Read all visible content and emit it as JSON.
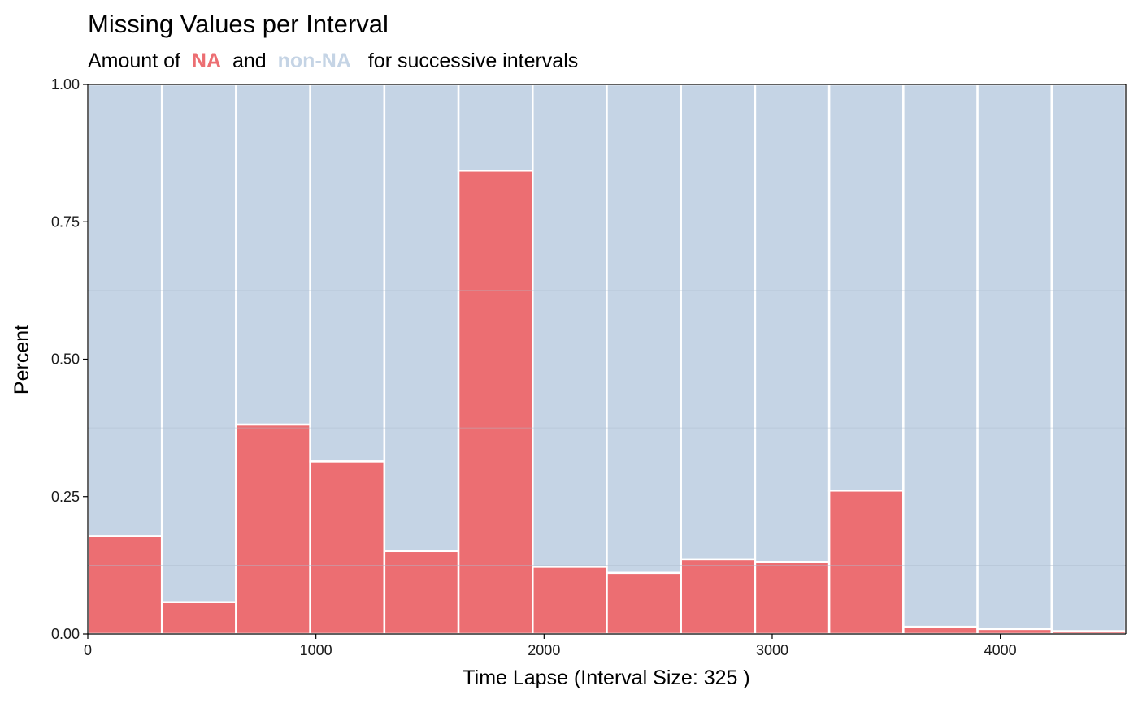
{
  "chart_data": {
    "type": "bar",
    "stacked": true,
    "title": "Missing Values per Interval",
    "subtitle": {
      "prefix": "Amount of",
      "na_label": "NA",
      "middle": "and",
      "nonna_label": "non-NA",
      "suffix": "for successive intervals"
    },
    "xlabel": "Time Lapse (Interval Size: 325 )",
    "ylabel": "Percent",
    "interval_size": 325,
    "xlim": [
      0,
      4550
    ],
    "ylim": [
      0,
      1
    ],
    "x_ticks": [
      "0",
      "1000",
      "2000",
      "3000",
      "4000"
    ],
    "x_tick_values": [
      0,
      1000,
      2000,
      3000,
      4000
    ],
    "y_ticks": [
      "0.00",
      "0.25",
      "0.50",
      "0.75",
      "1.00"
    ],
    "y_tick_values": [
      0,
      0.25,
      0.5,
      0.75,
      1.0
    ],
    "grid": true,
    "intervals": [
      {
        "start": 0,
        "end": 325,
        "na": 0.178
      },
      {
        "start": 325,
        "end": 650,
        "na": 0.058
      },
      {
        "start": 650,
        "end": 975,
        "na": 0.381
      },
      {
        "start": 975,
        "end": 1300,
        "na": 0.314
      },
      {
        "start": 1300,
        "end": 1625,
        "na": 0.151
      },
      {
        "start": 1625,
        "end": 1950,
        "na": 0.843
      },
      {
        "start": 1950,
        "end": 2275,
        "na": 0.122
      },
      {
        "start": 2275,
        "end": 2600,
        "na": 0.111
      },
      {
        "start": 2600,
        "end": 2925,
        "na": 0.136
      },
      {
        "start": 2925,
        "end": 3250,
        "na": 0.131
      },
      {
        "start": 3250,
        "end": 3575,
        "na": 0.261
      },
      {
        "start": 3575,
        "end": 3900,
        "na": 0.013
      },
      {
        "start": 3900,
        "end": 4225,
        "na": 0.009
      },
      {
        "start": 4225,
        "end": 4550,
        "na": 0.005
      }
    ],
    "colors": {
      "na": "#ec6e72",
      "non_na": "#c5d4e5",
      "bar_border": "#ffffff",
      "grid": "#aebccb"
    }
  }
}
